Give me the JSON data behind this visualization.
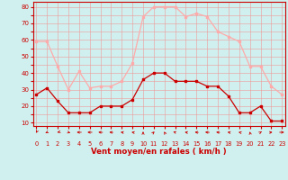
{
  "hours": [
    0,
    1,
    2,
    3,
    4,
    5,
    6,
    7,
    8,
    9,
    10,
    11,
    12,
    13,
    14,
    15,
    16,
    17,
    18,
    19,
    20,
    21,
    22,
    23
  ],
  "avg_wind": [
    27,
    31,
    23,
    16,
    16,
    16,
    20,
    20,
    20,
    24,
    36,
    40,
    40,
    35,
    35,
    35,
    32,
    32,
    26,
    16,
    16,
    20,
    11,
    11
  ],
  "gust_wind": [
    59,
    59,
    44,
    30,
    41,
    31,
    32,
    32,
    35,
    46,
    74,
    80,
    80,
    80,
    74,
    76,
    74,
    65,
    62,
    59,
    44,
    44,
    32,
    27
  ],
  "avg_color": "#cc0000",
  "gust_color": "#ffaaaa",
  "bg_color": "#cff0ee",
  "grid_color": "#ee9999",
  "xlabel": "Vent moyen/en rafales ( km/h )",
  "xlabel_color": "#cc0000",
  "tick_color": "#cc0000",
  "ytick_labels": [
    "10",
    "",
    "20",
    "",
    "30",
    "",
    "40",
    "",
    "50",
    "",
    "60",
    "",
    "70",
    "",
    "80"
  ],
  "ytick_vals": [
    10,
    15,
    20,
    25,
    30,
    35,
    40,
    45,
    50,
    55,
    60,
    65,
    70,
    75,
    80
  ],
  "ylim": [
    8,
    83
  ],
  "xlim": [
    -0.3,
    23.3
  ],
  "wind_dirs_deg": [
    185,
    200,
    215,
    155,
    270,
    268,
    285,
    295,
    310,
    315,
    0,
    10,
    355,
    335,
    312,
    298,
    288,
    297,
    312,
    318,
    358,
    15,
    50,
    90
  ]
}
